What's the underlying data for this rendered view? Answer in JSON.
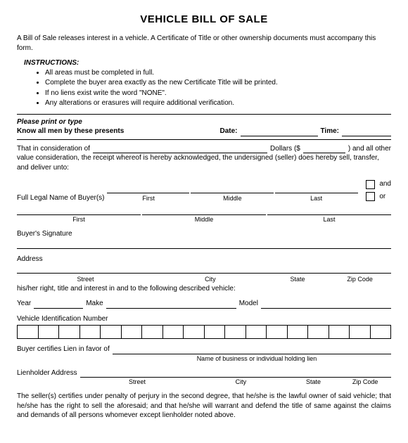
{
  "title": "VEHICLE BILL OF SALE",
  "intro": "A Bill of Sale releases interest in a vehicle.  A Certificate of Title or other ownership documents must accompany this form.",
  "instructionsHeader": "INSTRUCTIONS:",
  "instructions": [
    "All areas must be completed in full.",
    "Complete the buyer area exactly as the new Certificate Title will be printed.",
    "If no liens exist write the word \"NONE\".",
    "Any alterations or erasures will require additional verification."
  ],
  "dateline": {
    "pleasePrint": "Please print or type",
    "knowAll": "Know all men by these presents",
    "dateLabel": "Date:",
    "timeLabel": "Time:"
  },
  "consideration": {
    "line1a": "That in consideration of",
    "line1b": "Dollars ($",
    "line1c": ") and all other",
    "line2": "value consideration, the receipt whereof is hereby acknowledged, the undersigned (seller) does hereby sell, transfer, and deliver unto:"
  },
  "buyerNameLabel": "Full Legal Name of Buyer(s)",
  "nameParts": {
    "first": "First",
    "middle": "Middle",
    "last": "Last"
  },
  "andLabel": "and",
  "orLabel": "or",
  "buyerSignature": "Buyer's Signature",
  "addressLabel": "Address",
  "addressParts": {
    "street": "Street",
    "city": "City",
    "state": "State",
    "zip": "Zip Code"
  },
  "rightTitle": "his/her right, title and interest in and to the following described vehicle:",
  "yearLabel": "Year",
  "makeLabel": "Make",
  "modelLabel": "Model",
  "vinLabel": "Vehicle Identification Number",
  "vinCells": 18,
  "lienLabel": "Buyer certifies Lien in favor of",
  "lienSub": "Name of business or individual holding lien",
  "lienholderAddr": "Lienholder Address",
  "footer": "The seller(s) certifies under penalty of perjury in the second degree, that he/she is the lawful owner of said vehicle; that he/she has the right to sell the aforesaid; and that he/she will warrant and defend the title of same against the claims and demands of all persons whomever except lienholder noted above.",
  "colors": {
    "text": "#000000",
    "bg": "#ffffff",
    "line": "#000000"
  }
}
